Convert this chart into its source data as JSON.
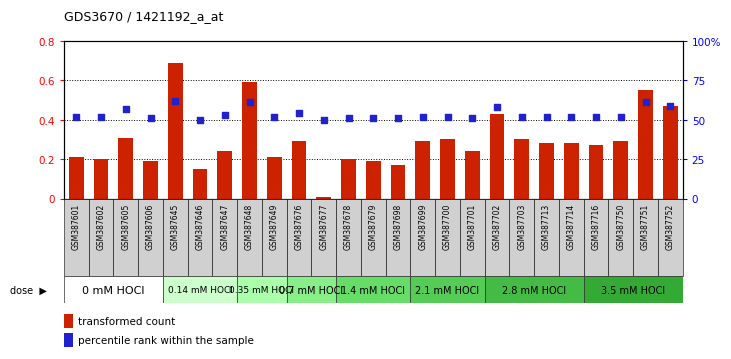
{
  "title": "GDS3670 / 1421192_a_at",
  "samples": [
    "GSM387601",
    "GSM387602",
    "GSM387605",
    "GSM387606",
    "GSM387645",
    "GSM387646",
    "GSM387647",
    "GSM387648",
    "GSM387649",
    "GSM387676",
    "GSM387677",
    "GSM387678",
    "GSM387679",
    "GSM387698",
    "GSM387699",
    "GSM387700",
    "GSM387701",
    "GSM387702",
    "GSM387703",
    "GSM387713",
    "GSM387714",
    "GSM387716",
    "GSM387750",
    "GSM387751",
    "GSM387752"
  ],
  "transformed_count": [
    0.21,
    0.2,
    0.31,
    0.19,
    0.69,
    0.15,
    0.24,
    0.59,
    0.21,
    0.29,
    0.01,
    0.2,
    0.19,
    0.17,
    0.29,
    0.3,
    0.24,
    0.43,
    0.3,
    0.28,
    0.28,
    0.27,
    0.29,
    0.55,
    0.47
  ],
  "percentile_rank": [
    52,
    52,
    57,
    51,
    62,
    50,
    53,
    61,
    52,
    54,
    50,
    51,
    51,
    51,
    52,
    52,
    51,
    58,
    52,
    52,
    52,
    52,
    52,
    61,
    59
  ],
  "dose_groups": [
    {
      "label": "0 mM HOCl",
      "start": 0,
      "end": 4,
      "color": "#ffffff",
      "fontsize": 8
    },
    {
      "label": "0.14 mM HOCl",
      "start": 4,
      "end": 7,
      "color": "#ccffcc",
      "fontsize": 6.5
    },
    {
      "label": "0.35 mM HOCl",
      "start": 7,
      "end": 9,
      "color": "#aaffaa",
      "fontsize": 6.5
    },
    {
      "label": "0.7 mM HOCl",
      "start": 9,
      "end": 11,
      "color": "#88ee88",
      "fontsize": 7
    },
    {
      "label": "1.4 mM HOCl",
      "start": 11,
      "end": 14,
      "color": "#66dd66",
      "fontsize": 7
    },
    {
      "label": "2.1 mM HOCl",
      "start": 14,
      "end": 17,
      "color": "#55cc55",
      "fontsize": 7
    },
    {
      "label": "2.8 mM HOCl",
      "start": 17,
      "end": 21,
      "color": "#44bb44",
      "fontsize": 7
    },
    {
      "label": "3.5 mM HOCl",
      "start": 21,
      "end": 25,
      "color": "#33aa33",
      "fontsize": 7
    }
  ],
  "bar_color": "#cc2200",
  "dot_color": "#2222cc",
  "ylim_left": [
    0,
    0.8
  ],
  "ylim_right": [
    0,
    100
  ],
  "yticks_left": [
    0.0,
    0.2,
    0.4,
    0.6,
    0.8
  ],
  "ytick_labels_left": [
    "0",
    "0.2",
    "0.4",
    "0.6",
    "0.8"
  ],
  "yticks_right": [
    0,
    25,
    50,
    75,
    100
  ],
  "ytick_labels_right": [
    "0",
    "25",
    "50",
    "75",
    "100%"
  ],
  "grid_values": [
    0.2,
    0.4,
    0.6
  ],
  "sample_bg": "#cccccc",
  "background_color": "#ffffff"
}
